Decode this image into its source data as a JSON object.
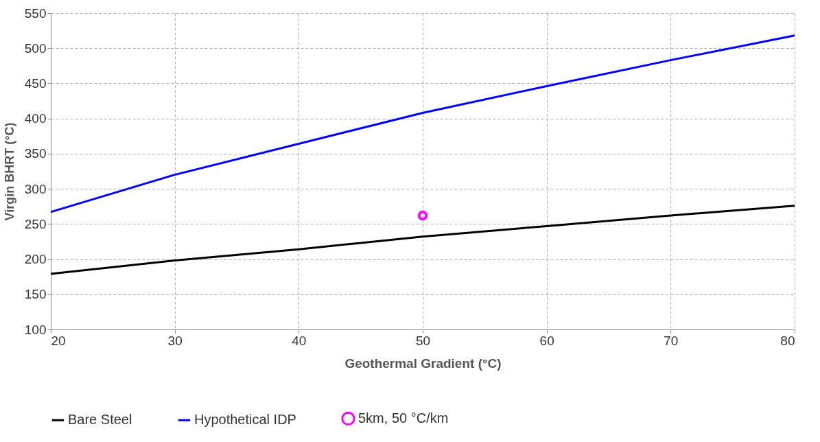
{
  "chart_data": {
    "type": "line",
    "xlabel": "Geothermal Gradient (°C)",
    "ylabel": "Virgin BHRT (°C)",
    "xlim": [
      20,
      80
    ],
    "xticks": [
      20,
      30,
      40,
      50,
      60,
      70,
      80
    ],
    "ylim": [
      100,
      550
    ],
    "yticks": [
      100,
      150,
      200,
      250,
      300,
      350,
      400,
      450,
      500,
      550
    ],
    "grid": true,
    "legend": "bottom",
    "series": [
      {
        "name": "Bare Steel",
        "color": "#000000",
        "type": "line",
        "marker": "none",
        "x": [
          20,
          30,
          40,
          45,
          50,
          60,
          70,
          80
        ],
        "values": [
          179,
          198,
          214,
          223,
          232,
          247,
          262,
          276
        ]
      },
      {
        "name": "Hypothetical IDP",
        "color": "#0000ff",
        "type": "line",
        "marker": "none",
        "x": [
          20,
          30,
          40,
          50,
          60,
          70,
          80
        ],
        "values": [
          267,
          320,
          364,
          408,
          446,
          483,
          518
        ]
      },
      {
        "name": "5km, 50 °C/km",
        "color": "#ff00ff",
        "type": "scatter",
        "marker": "circle",
        "x": [
          50
        ],
        "values": [
          262
        ]
      }
    ]
  }
}
